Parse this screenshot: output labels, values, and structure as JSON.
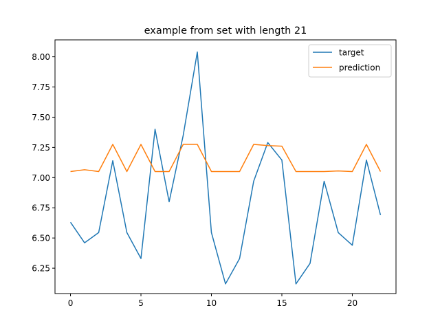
{
  "chart_data": {
    "type": "line",
    "title": "example from set with length 21",
    "xlabel": "",
    "ylabel": "",
    "xlim": [
      -1.1,
      23.1
    ],
    "ylim": [
      6.04,
      8.14
    ],
    "xticks": [
      0,
      5,
      10,
      15,
      20
    ],
    "xtick_labels": [
      "0",
      "5",
      "10",
      "15",
      "20"
    ],
    "yticks": [
      6.25,
      6.5,
      6.75,
      7.0,
      7.25,
      7.5,
      7.75,
      8.0
    ],
    "ytick_labels": [
      "6.25",
      "6.50",
      "6.75",
      "7.00",
      "7.25",
      "7.50",
      "7.75",
      "8.00"
    ],
    "grid": false,
    "legend_position": "top-right",
    "x": [
      0,
      1,
      2,
      3,
      4,
      5,
      6,
      7,
      8,
      9,
      10,
      11,
      12,
      13,
      14,
      15,
      16,
      17,
      18,
      19,
      20,
      21,
      22
    ],
    "series": [
      {
        "name": "target",
        "color": "#1f77b4",
        "values": [
          6.63,
          6.46,
          6.545,
          7.14,
          6.545,
          6.33,
          7.4,
          6.8,
          7.35,
          8.04,
          6.545,
          6.12,
          6.33,
          6.97,
          7.29,
          7.145,
          6.12,
          6.29,
          6.97,
          6.545,
          6.44,
          7.145,
          6.69
        ]
      },
      {
        "name": "prediction",
        "color": "#ff7f0e",
        "values": [
          7.05,
          7.065,
          7.05,
          7.275,
          7.05,
          7.275,
          7.05,
          7.05,
          7.275,
          7.275,
          7.05,
          7.05,
          7.05,
          7.275,
          7.265,
          7.26,
          7.05,
          7.05,
          7.05,
          7.055,
          7.05,
          7.275,
          7.05
        ]
      }
    ]
  }
}
